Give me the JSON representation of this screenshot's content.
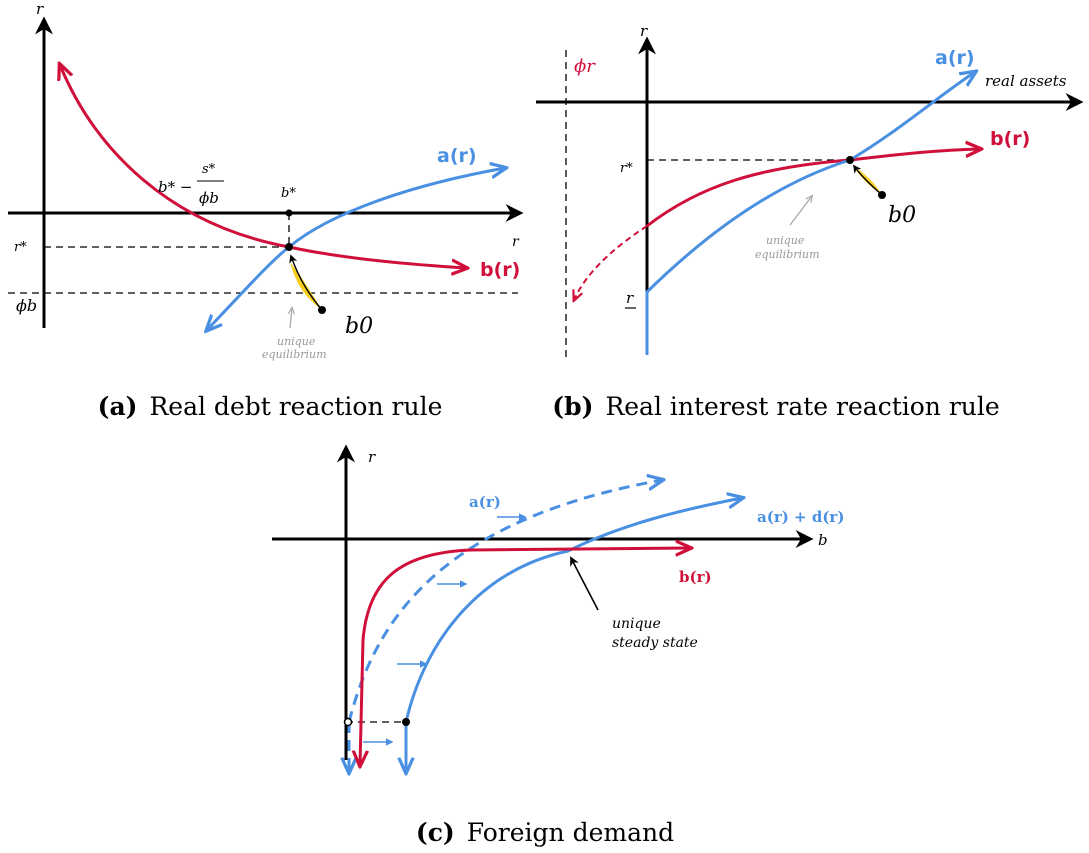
{
  "panel_a": {
    "caption_tag": "(a)",
    "caption": "Real debt reaction rule",
    "axis_y": "r",
    "axis_x": "r",
    "r_star": "r*",
    "phi_b": "ϕb",
    "b_star": "b*",
    "b_star_expr": "b* −",
    "frac_num": "s*",
    "frac_den": "ϕb",
    "a_label": "a(r)",
    "b_label": "b(r)",
    "b0": "b0",
    "eq_line1": "unique",
    "eq_line2": "equilibrium"
  },
  "panel_b": {
    "caption_tag": "(b)",
    "caption": "Real interest rate reaction rule",
    "axis_y": "r",
    "axis_x": "real assets",
    "phi_r": "ϕr",
    "r_star": "r*",
    "r_under": "r",
    "a_label": "a(r)",
    "b_label": "b(r)",
    "b0": "b0",
    "eq_line1": "unique",
    "eq_line2": "equilibrium"
  },
  "panel_c": {
    "caption_tag": "(c)",
    "caption": "Foreign demand",
    "axis_y": "r",
    "axis_x": "b",
    "a_label": "a(r)",
    "ad_label": "a(r) + d(r)",
    "b_label": "b(r)",
    "ss_line1": "unique",
    "ss_line2": "steady state"
  }
}
